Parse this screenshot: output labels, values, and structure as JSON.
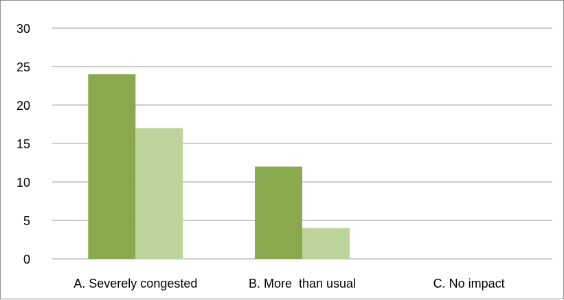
{
  "chart_data": {
    "type": "bar",
    "categories": [
      "A. Severely congested",
      "B. More  than usual",
      "C. No impact"
    ],
    "series": [
      {
        "values": [
          24,
          12,
          0
        ],
        "color": "#8aa94f"
      },
      {
        "values": [
          17,
          4,
          0
        ],
        "color": "#bcd49b"
      }
    ],
    "y_ticks": [
      0,
      5,
      10,
      15,
      20,
      25,
      30
    ],
    "ylim": [
      0,
      30
    ],
    "grid": true,
    "legend": "none",
    "gridline_color": "#9a9a9a"
  }
}
